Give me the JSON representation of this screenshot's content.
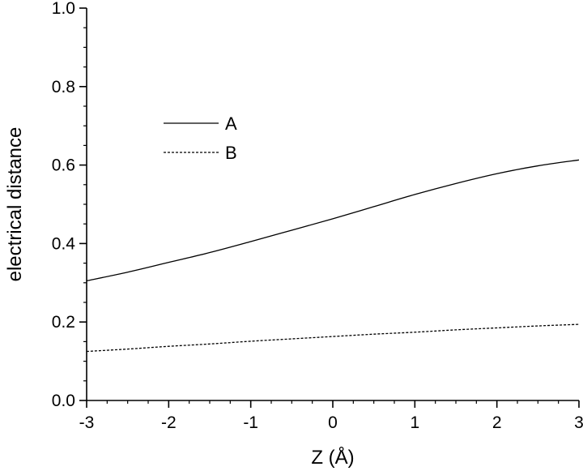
{
  "chart_data": {
    "type": "line",
    "title": "",
    "xlabel": "Z (Å)",
    "ylabel": "electrical distance",
    "xlim": [
      -3,
      3
    ],
    "ylim": [
      0.0,
      1.0
    ],
    "x_ticks": [
      "-3",
      "-2",
      "-1",
      "0",
      "1",
      "2",
      "3"
    ],
    "y_ticks": [
      "0.0",
      "0.2",
      "0.4",
      "0.6",
      "0.8",
      "1.0"
    ],
    "grid": false,
    "legend_position": "upper-left",
    "series": [
      {
        "name": "A",
        "style": "solid",
        "color": "#000000",
        "x": [
          -3,
          -2.5,
          -2,
          -1.5,
          -1,
          -0.5,
          0,
          0.5,
          1,
          1.5,
          2,
          2.5,
          3
        ],
        "y": [
          0.305,
          0.327,
          0.352,
          0.377,
          0.405,
          0.434,
          0.463,
          0.494,
          0.525,
          0.553,
          0.578,
          0.598,
          0.613
        ]
      },
      {
        "name": "B",
        "style": "dashed",
        "color": "#000000",
        "x": [
          -3,
          -2.5,
          -2,
          -1.5,
          -1,
          -0.5,
          0,
          0.5,
          1,
          1.5,
          2,
          2.5,
          3
        ],
        "y": [
          0.125,
          0.131,
          0.138,
          0.144,
          0.151,
          0.157,
          0.163,
          0.169,
          0.174,
          0.18,
          0.185,
          0.19,
          0.194
        ]
      }
    ]
  }
}
